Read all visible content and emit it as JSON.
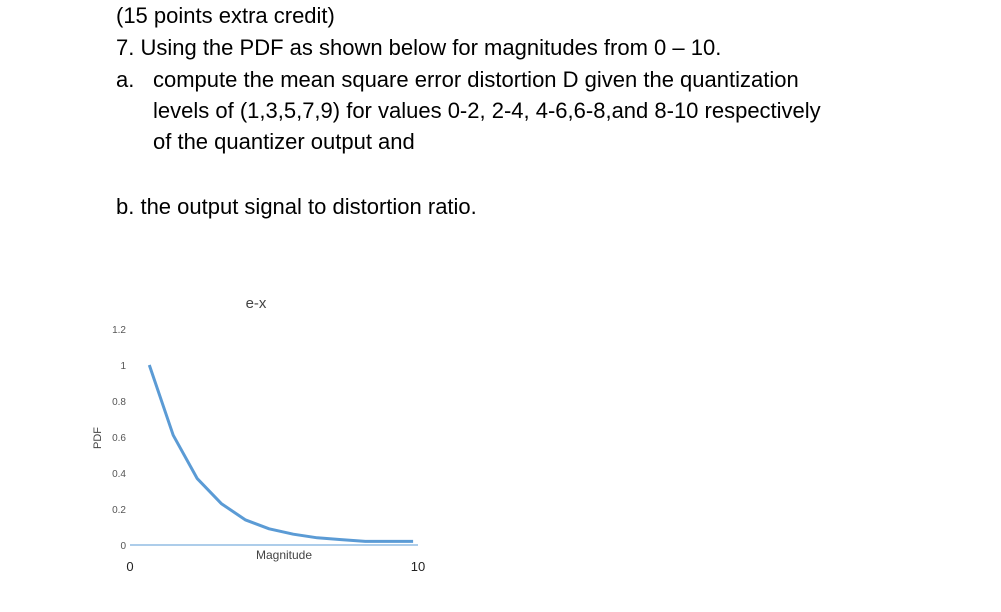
{
  "question": {
    "extra_credit": "(15 points extra credit)",
    "item7": "7. Using the PDF as shown below for magnitudes from 0 – 10.",
    "part_a_label": "a.",
    "part_a_lines": [
      "compute the mean square error distortion D given the quantization",
      "levels of (1,3,5,7,9) for values 0-2, 2-4, 4-6,6-8,and 8-10 respectively",
      "of the quantizer output and"
    ],
    "part_b": "b. the output signal to distortion ratio."
  },
  "chart_data": {
    "type": "line",
    "title": "e-x",
    "xlabel": "Magnitude",
    "ylabel": "PDF",
    "xlim": [
      0,
      10
    ],
    "ylim": [
      0,
      1.2
    ],
    "x_ticks": [
      "0",
      "10"
    ],
    "y_ticks": [
      "0",
      "0.2",
      "0.4",
      "0.6",
      "0.8",
      "1",
      "1.2"
    ],
    "series": [
      {
        "color": "#5B9BD5",
        "x": [
          0.67,
          1.5,
          2.33,
          3.17,
          4.0,
          4.83,
          5.67,
          6.5,
          7.33,
          8.17,
          9.0,
          9.83
        ],
        "y": [
          1.0,
          0.61,
          0.37,
          0.23,
          0.14,
          0.09,
          0.06,
          0.04,
          0.03,
          0.02,
          0.02,
          0.02
        ]
      },
      {
        "color": "#5B9BD5",
        "x": [
          0,
          10
        ],
        "y": [
          0.0,
          0.0
        ]
      }
    ]
  }
}
